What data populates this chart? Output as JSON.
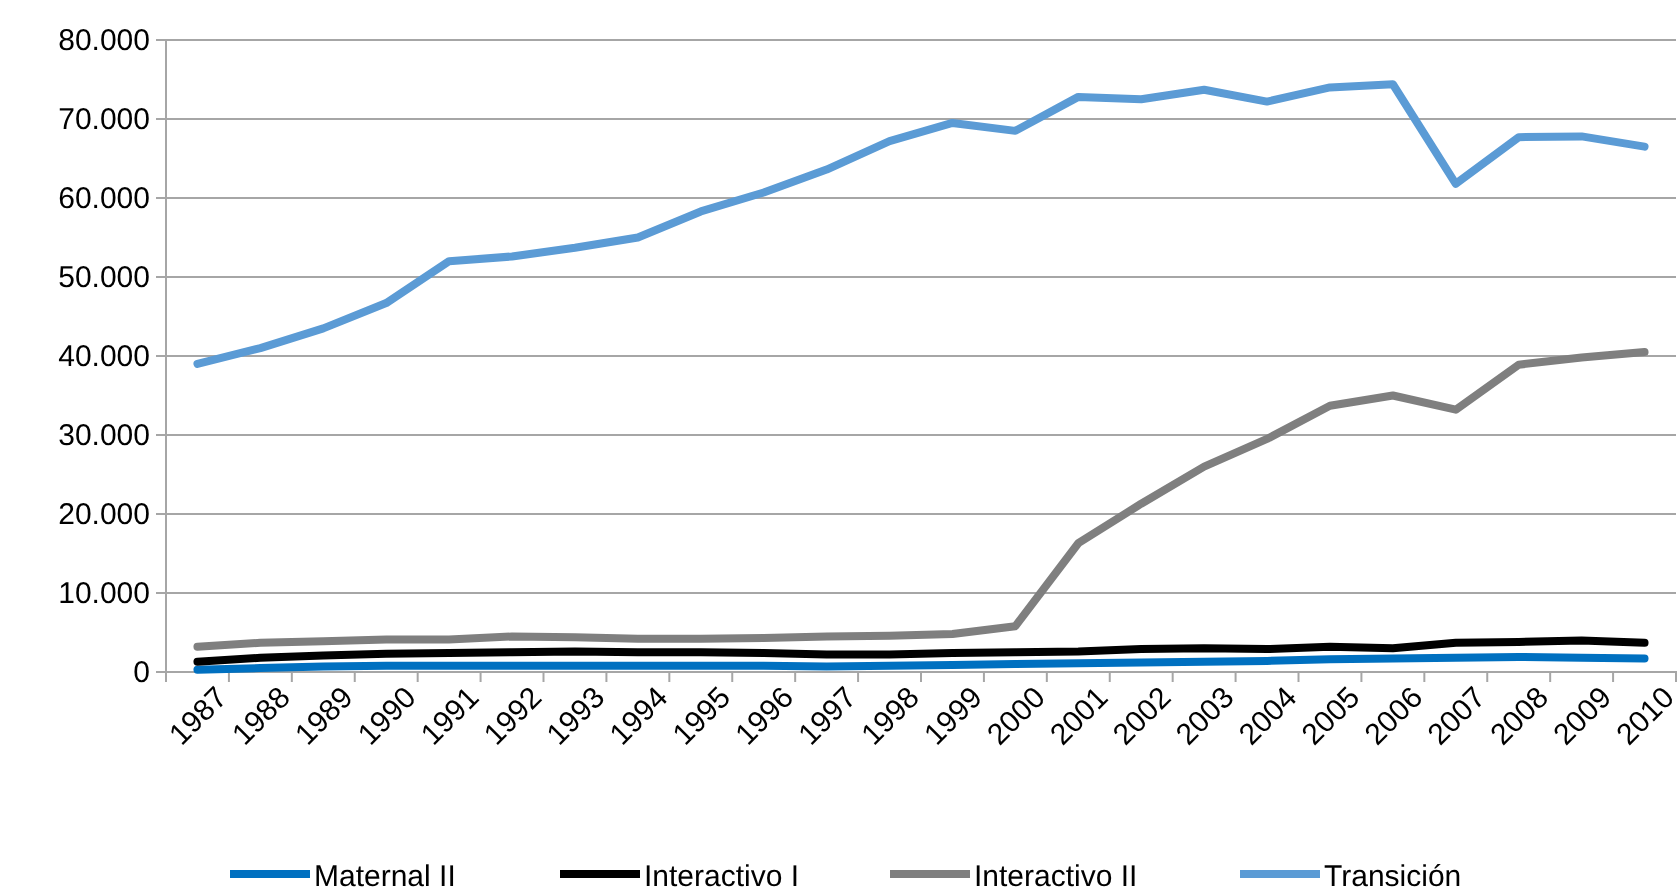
{
  "chart_data": {
    "type": "line",
    "categories": [
      "1987",
      "1988",
      "1989",
      "1990",
      "1991",
      "1992",
      "1993",
      "1994",
      "1995",
      "1996",
      "1997",
      "1998",
      "1999",
      "2000",
      "2001",
      "2002",
      "2003",
      "2004",
      "2005",
      "2006",
      "2007",
      "2008",
      "2009",
      "2010"
    ],
    "series": [
      {
        "name": "Maternal II",
        "color": "#0070c0",
        "values": [
          300,
          500,
          700,
          800,
          800,
          800,
          800,
          800,
          800,
          800,
          700,
          800,
          900,
          1000,
          1100,
          1200,
          1300,
          1400,
          1600,
          1700,
          1800,
          1900,
          1800,
          1700
        ]
      },
      {
        "name": "Interactivo I",
        "color": "#000000",
        "values": [
          1300,
          1800,
          2100,
          2300,
          2400,
          2500,
          2600,
          2500,
          2500,
          2400,
          2200,
          2200,
          2400,
          2500,
          2600,
          2900,
          3000,
          2900,
          3200,
          3000,
          3700,
          3800,
          4000,
          3700
        ]
      },
      {
        "name": "Interactivo II",
        "color": "#7f7f7f",
        "values": [
          3200,
          3700,
          3900,
          4100,
          4100,
          4500,
          4400,
          4200,
          4200,
          4300,
          4500,
          4600,
          4800,
          5800,
          16300,
          21300,
          26000,
          29500,
          33700,
          35000,
          33200,
          38900,
          39800,
          40500
        ]
      },
      {
        "name": "Transición",
        "color": "#5b9bd5",
        "values": [
          39000,
          41000,
          43500,
          46700,
          52000,
          52600,
          53700,
          55000,
          58300,
          60700,
          63600,
          67200,
          69500,
          68500,
          72800,
          72500,
          73700,
          72200,
          74000,
          74400,
          61800,
          67700,
          67800,
          66500
        ]
      }
    ],
    "ylim": [
      0,
      80000
    ],
    "yticks": [
      0,
      {
        "value": 10000,
        "label": "10.000"
      },
      {
        "value": 20000,
        "label": "20.000"
      },
      {
        "value": 30000,
        "label": "30.000"
      },
      {
        "value": 40000,
        "label": "40.000"
      },
      {
        "value": 50000,
        "label": "50.000"
      },
      {
        "value": 60000,
        "label": "60.000"
      },
      {
        "value": 70000,
        "label": "70.000"
      },
      {
        "value": 80000,
        "label": "80.000"
      }
    ],
    "grid": "y",
    "legend": "bottom",
    "marker": "none",
    "line_style": "solid"
  }
}
